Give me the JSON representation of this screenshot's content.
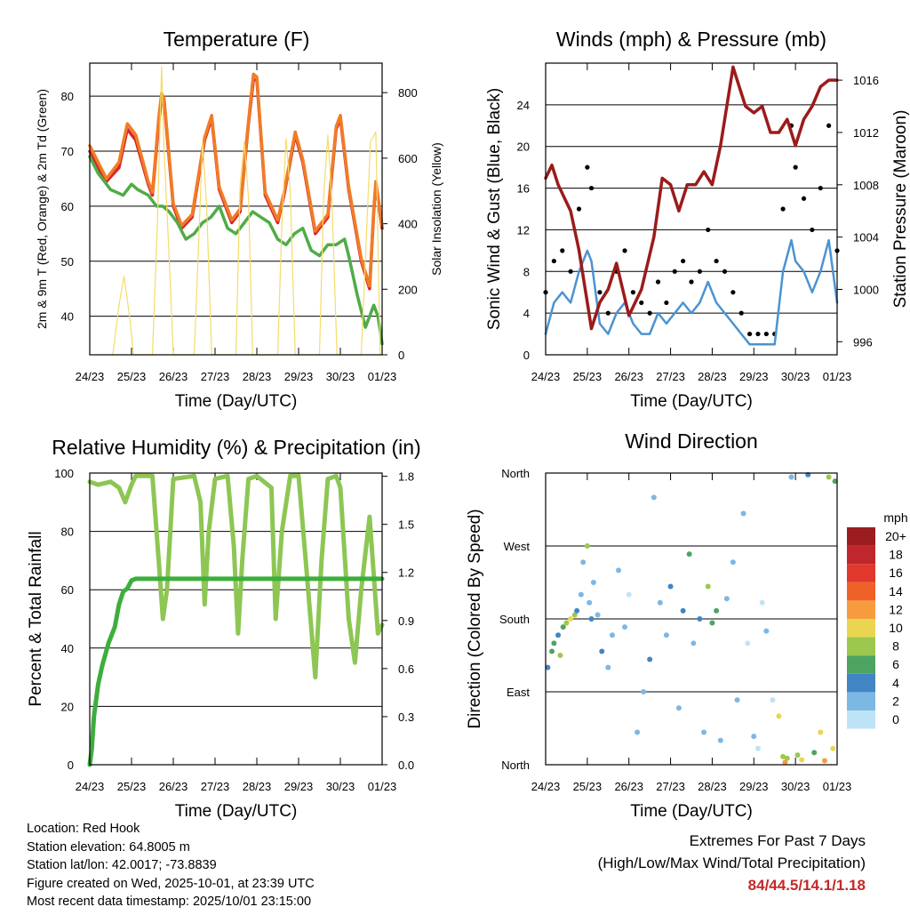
{
  "info": {
    "location": "Location: Red Hook",
    "elevation": "Station elevation: 64.8005 m",
    "latlon": "Station lat/lon: 42.0017; -73.8839",
    "created": "Figure created on Wed, 2025-10-01, at 23:39 UTC",
    "recent": "Most recent data timestamp: 2025/10/01 23:15:00"
  },
  "extremes": {
    "title": "Extremes For Past 7 Days",
    "subtitle": "(High/Low/Max Wind/Total Precipitation)",
    "values": "84/44.5/14.1/1.18"
  },
  "colors": {
    "temp2m": "#d7262b",
    "temp9m": "#f07c26",
    "dewpoint": "#4fac46",
    "solar": "#f5dc6a",
    "gust": "#000000",
    "wind": "#4b93d1",
    "pressure": "#9b1b1b",
    "rh": "#8dc653",
    "precip": "#3dae3d",
    "gridline": "#000000"
  },
  "chart_data": [
    {
      "id": "temperature",
      "type": "line",
      "title": "Temperature (F)",
      "xlabel": "Time (Day/UTC)",
      "ylabel": "2m & 9m T (Red, Orange) & 2m Td (Green)",
      "y2label": "Solar Insolation (Yellow)",
      "x_ticks": [
        "24/23",
        "25/23",
        "26/23",
        "27/23",
        "28/23",
        "29/23",
        "30/23",
        "01/23"
      ],
      "xlim": [
        0,
        7
      ],
      "ylim": [
        33,
        86
      ],
      "y_ticks": [
        40,
        50,
        60,
        70,
        80
      ],
      "y2lim": [
        0,
        890
      ],
      "y2_ticks": [
        0,
        200,
        400,
        600,
        800
      ],
      "series": [
        {
          "name": "2m T",
          "color_key": "temp2m",
          "axis": "left",
          "x": [
            0,
            0.2,
            0.4,
            0.7,
            0.9,
            1.1,
            1.4,
            1.5,
            1.65,
            1.72,
            1.78,
            2.0,
            2.2,
            2.45,
            2.75,
            2.92,
            3.1,
            3.4,
            3.6,
            3.8,
            3.92,
            4.0,
            4.2,
            4.5,
            4.65,
            4.92,
            5.1,
            5.4,
            5.7,
            5.9,
            6.0,
            6.2,
            6.5,
            6.7,
            6.8,
            6.85,
            7.0
          ],
          "values": [
            70,
            67,
            64.5,
            67,
            74,
            72,
            64,
            62,
            75,
            80,
            79,
            60,
            56,
            58,
            72,
            76,
            63,
            57,
            59,
            75,
            83,
            83,
            62,
            57,
            62,
            73,
            68,
            55,
            58,
            74,
            76,
            63,
            50,
            45,
            59,
            64,
            56
          ]
        },
        {
          "name": "9m T",
          "color_key": "temp9m",
          "axis": "left",
          "x": [
            0,
            0.2,
            0.4,
            0.7,
            0.9,
            1.1,
            1.4,
            1.5,
            1.65,
            1.72,
            1.78,
            2.0,
            2.2,
            2.45,
            2.75,
            2.92,
            3.1,
            3.4,
            3.6,
            3.8,
            3.92,
            4.0,
            4.2,
            4.5,
            4.65,
            4.92,
            5.1,
            5.4,
            5.7,
            5.9,
            6.0,
            6.2,
            6.5,
            6.7,
            6.8,
            6.85,
            7.0
          ],
          "values": [
            71,
            68,
            65,
            68,
            75,
            73,
            64.5,
            62.5,
            76,
            80.5,
            79.5,
            60.5,
            56.5,
            58.5,
            72.5,
            76.5,
            63.5,
            57.5,
            59.5,
            75.5,
            84,
            83.5,
            62.5,
            57.5,
            62.5,
            73.5,
            68.5,
            55.5,
            58.5,
            74.5,
            76.5,
            63.5,
            50.5,
            45.5,
            59.5,
            64.5,
            56.5
          ]
        },
        {
          "name": "2m Td",
          "color_key": "dewpoint",
          "axis": "left",
          "x": [
            0,
            0.2,
            0.5,
            0.8,
            1.0,
            1.15,
            1.4,
            1.6,
            1.75,
            1.9,
            2.1,
            2.3,
            2.5,
            2.7,
            2.9,
            3.1,
            3.3,
            3.5,
            3.7,
            3.9,
            4.1,
            4.3,
            4.5,
            4.7,
            4.9,
            5.1,
            5.3,
            5.5,
            5.7,
            5.9,
            6.1,
            6.2,
            6.4,
            6.6,
            6.8,
            6.9,
            7.0
          ],
          "values": [
            69,
            66,
            63,
            62,
            64,
            63,
            62,
            60,
            60,
            59,
            57,
            54,
            55,
            57,
            58,
            60,
            56,
            55,
            57,
            59,
            58,
            57,
            54,
            53,
            55,
            56,
            52,
            51,
            53,
            53,
            54,
            51,
            44,
            38,
            42,
            40,
            35
          ]
        },
        {
          "name": "Solar",
          "color_key": "solar",
          "axis": "right",
          "x": [
            0.55,
            0.7,
            0.82,
            0.95,
            1.05,
            1.5,
            1.62,
            1.72,
            1.78,
            1.9,
            2.0,
            2.5,
            2.62,
            2.7,
            2.8,
            2.92,
            3.5,
            3.6,
            3.7,
            3.8,
            3.9,
            4.5,
            4.6,
            4.7,
            4.8,
            4.92,
            5.5,
            5.6,
            5.7,
            5.8,
            5.92,
            6.5,
            6.62,
            6.72,
            6.85,
            6.95
          ],
          "values": [
            0,
            150,
            240,
            120,
            0,
            0,
            400,
            880,
            620,
            300,
            0,
            0,
            380,
            650,
            450,
            0,
            0,
            520,
            650,
            480,
            0,
            0,
            400,
            660,
            500,
            0,
            0,
            480,
            670,
            460,
            0,
            0,
            350,
            650,
            680,
            0
          ]
        }
      ]
    },
    {
      "id": "winds",
      "type": "line",
      "title": "Winds (mph) & Pressure (mb)",
      "xlabel": "Time (Day/UTC)",
      "ylabel": "Sonic Wind & Gust (Blue, Black)",
      "y2label": "Station Pressure (Maroon)",
      "x_ticks": [
        "24/23",
        "25/23",
        "26/23",
        "27/23",
        "28/23",
        "29/23",
        "30/23",
        "01/23"
      ],
      "xlim": [
        0,
        7
      ],
      "ylim": [
        0,
        28
      ],
      "y_ticks": [
        0,
        4,
        8,
        12,
        16,
        20,
        24
      ],
      "y2lim": [
        995,
        1017.3
      ],
      "y2_ticks": [
        996,
        1000,
        1004,
        1008,
        1012,
        1016
      ],
      "series": [
        {
          "name": "Gust",
          "color_key": "gust",
          "axis": "left",
          "x": [
            0,
            0.2,
            0.4,
            0.6,
            0.8,
            1.0,
            1.1,
            1.3,
            1.5,
            1.7,
            1.9,
            2.1,
            2.3,
            2.5,
            2.7,
            2.9,
            3.1,
            3.3,
            3.5,
            3.7,
            3.9,
            4.1,
            4.3,
            4.5,
            4.7,
            4.9,
            5.1,
            5.3,
            5.5,
            5.7,
            5.9,
            6.0,
            6.2,
            6.4,
            6.6,
            6.8,
            7.0
          ],
          "values": [
            6,
            9,
            10,
            8,
            14,
            18,
            16,
            6,
            4,
            8,
            10,
            6,
            5,
            4,
            7,
            5,
            8,
            9,
            7,
            8,
            12,
            9,
            8,
            6,
            4,
            2,
            2,
            2,
            2,
            14,
            22,
            18,
            15,
            12,
            16,
            22,
            10
          ]
        },
        {
          "name": "Sonic Wind",
          "color_key": "wind",
          "axis": "left",
          "x": [
            0,
            0.2,
            0.4,
            0.6,
            0.8,
            1.0,
            1.1,
            1.3,
            1.5,
            1.7,
            1.9,
            2.1,
            2.3,
            2.5,
            2.7,
            2.9,
            3.1,
            3.3,
            3.5,
            3.7,
            3.9,
            4.1,
            4.3,
            4.5,
            4.7,
            4.9,
            5.1,
            5.3,
            5.5,
            5.7,
            5.9,
            6.0,
            6.2,
            6.4,
            6.6,
            6.8,
            7.0
          ],
          "values": [
            2,
            5,
            6,
            5,
            8,
            10,
            9,
            3,
            2,
            4,
            5,
            3,
            2,
            2,
            4,
            3,
            4,
            5,
            4,
            5,
            7,
            5,
            4,
            3,
            2,
            1,
            1,
            1,
            1,
            8,
            11,
            9,
            8,
            6,
            8,
            11,
            5
          ]
        },
        {
          "name": "Pressure",
          "color_key": "pressure",
          "axis": "right",
          "x": [
            0,
            0.15,
            0.3,
            0.6,
            0.8,
            1.0,
            1.1,
            1.3,
            1.5,
            1.7,
            2.0,
            2.3,
            2.6,
            2.8,
            3.0,
            3.2,
            3.4,
            3.6,
            3.8,
            4.0,
            4.2,
            4.4,
            4.5,
            4.6,
            4.7,
            4.8,
            5.0,
            5.2,
            5.4,
            5.6,
            5.8,
            6.0,
            6.2,
            6.4,
            6.6,
            6.8,
            7.0
          ],
          "values": [
            1008.5,
            1009.5,
            1008,
            1006,
            1003,
            999,
            997,
            999,
            1000,
            1002,
            998,
            1000,
            1004,
            1008.5,
            1008,
            1006,
            1008,
            1008,
            1009,
            1008,
            1011,
            1015,
            1017,
            1016,
            1015,
            1014,
            1013.5,
            1014,
            1012,
            1012,
            1013,
            1011,
            1013,
            1014,
            1015.5,
            1016,
            1016
          ]
        }
      ]
    },
    {
      "id": "humidity",
      "type": "line",
      "title": "Relative Humidity (%) & Precipitation (in)",
      "xlabel": "Time (Day/UTC)",
      "ylabel": "Percent & Total Rainfall",
      "x_ticks": [
        "24/23",
        "25/23",
        "26/23",
        "27/23",
        "28/23",
        "29/23",
        "30/23",
        "01/23"
      ],
      "xlim": [
        0,
        7
      ],
      "ylim": [
        0,
        100
      ],
      "y_ticks": [
        0,
        20,
        40,
        60,
        80,
        100
      ],
      "y2lim": [
        0,
        1.82
      ],
      "y2_ticks": [
        "0.0",
        "0.3",
        "0.6",
        "0.9",
        "1.2",
        "1.5",
        "1.8"
      ],
      "series": [
        {
          "name": "Relative Humidity",
          "color_key": "rh",
          "axis": "left",
          "x": [
            0,
            0.2,
            0.5,
            0.7,
            0.85,
            1.0,
            1.1,
            1.5,
            1.65,
            1.75,
            1.85,
            2.0,
            2.5,
            2.65,
            2.75,
            2.85,
            3.0,
            3.3,
            3.45,
            3.55,
            3.65,
            3.8,
            4.0,
            4.35,
            4.45,
            4.6,
            4.8,
            5.0,
            5.2,
            5.4,
            5.55,
            5.7,
            5.9,
            6.0,
            6.2,
            6.35,
            6.5,
            6.7,
            6.9,
            7.0
          ],
          "values": [
            97,
            96,
            97,
            95,
            90,
            96,
            99,
            99,
            70,
            50,
            60,
            98,
            99,
            90,
            55,
            80,
            98,
            99,
            75,
            45,
            70,
            98,
            99,
            95,
            50,
            80,
            99,
            99,
            65,
            30,
            70,
            98,
            99,
            95,
            50,
            35,
            60,
            85,
            45,
            48
          ]
        },
        {
          "name": "Total Precipitation",
          "color_key": "precip",
          "axis": "right",
          "x": [
            0,
            0.05,
            0.1,
            0.2,
            0.3,
            0.45,
            0.6,
            0.7,
            0.8,
            0.9,
            1.0,
            1.1,
            1.2,
            1.5,
            3.0,
            5.0,
            7.0
          ],
          "values": [
            0,
            0.1,
            0.3,
            0.5,
            0.62,
            0.76,
            0.86,
            1.0,
            1.08,
            1.1,
            1.15,
            1.16,
            1.16,
            1.16,
            1.16,
            1.16,
            1.16
          ]
        }
      ]
    },
    {
      "id": "direction",
      "type": "scatter",
      "title": "Wind Direction",
      "xlabel": "Time (Day/UTC)",
      "ylabel": "Direction (Colored By Speed)",
      "x_ticks": [
        "24/23",
        "25/23",
        "26/23",
        "27/23",
        "28/23",
        "29/23",
        "30/23",
        "01/23"
      ],
      "xlim": [
        0,
        7
      ],
      "y_ticks": [
        "North",
        "East",
        "South",
        "West",
        "North"
      ],
      "ylim": [
        0,
        360
      ],
      "legend": {
        "unit": "mph",
        "labels": [
          "20+",
          "18",
          "16",
          "14",
          "12",
          "10",
          "8",
          "6",
          "4",
          "2",
          "0"
        ],
        "colors": [
          "#9b1d20",
          "#c0272d",
          "#e0382c",
          "#ef6128",
          "#f79b3f",
          "#ead550",
          "#9cc84f",
          "#4da461",
          "#4285c4",
          "#7db7e4",
          "#bfe3f6"
        ]
      },
      "series": [
        {
          "name": "Direction",
          "x": [
            0.05,
            0.15,
            0.2,
            0.3,
            0.35,
            0.42,
            0.5,
            0.6,
            0.7,
            0.75,
            0.85,
            0.9,
            1.0,
            1.05,
            1.1,
            1.15,
            1.25,
            1.35,
            1.5,
            1.6,
            1.75,
            1.9,
            2.0,
            2.2,
            2.35,
            2.5,
            2.6,
            2.75,
            2.9,
            3.0,
            3.2,
            3.3,
            3.45,
            3.55,
            3.7,
            3.8,
            3.9,
            4.0,
            4.1,
            4.2,
            4.35,
            4.5,
            4.6,
            4.75,
            4.85,
            5.0,
            5.1,
            5.2,
            5.3,
            5.45,
            5.6,
            5.7,
            5.75,
            5.8,
            5.9,
            6.05,
            6.15,
            6.3,
            6.45,
            6.6,
            6.7,
            6.8,
            6.9,
            6.95
          ],
          "values": [
            120,
            140,
            150,
            160,
            135,
            170,
            175,
            180,
            185,
            190,
            210,
            250,
            270,
            200,
            180,
            225,
            185,
            140,
            120,
            160,
            240,
            170,
            210,
            40,
            90,
            130,
            330,
            200,
            160,
            220,
            70,
            190,
            260,
            150,
            180,
            40,
            220,
            175,
            190,
            30,
            205,
            250,
            80,
            310,
            150,
            35,
            20,
            200,
            165,
            80,
            60,
            10,
            3,
            8,
            355,
            12,
            6,
            358,
            15,
            40,
            5,
            355,
            20,
            350
          ],
          "speeds": [
            4,
            6,
            6,
            4,
            8,
            6,
            9,
            10,
            8,
            4,
            2,
            3,
            8,
            2,
            4,
            3,
            2,
            4,
            2,
            3,
            2,
            3,
            1,
            3,
            2,
            4,
            2,
            3,
            2,
            4,
            3,
            4,
            6,
            2,
            5,
            3,
            8,
            6,
            7,
            3,
            2,
            3,
            2,
            3,
            1,
            2,
            1,
            0,
            2,
            1,
            10,
            8,
            12,
            9,
            3,
            8,
            10,
            4,
            6,
            10,
            12,
            9,
            11,
            7
          ]
        }
      ]
    }
  ]
}
